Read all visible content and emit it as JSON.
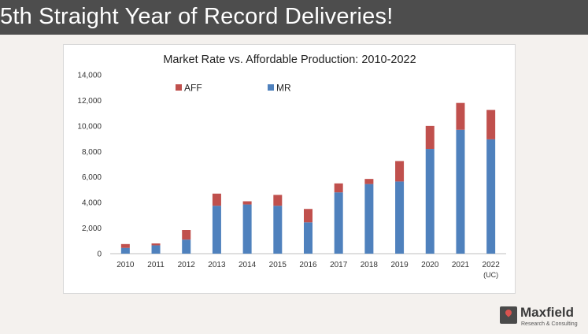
{
  "slide": {
    "heading": "5th Straight Year of Record Deliveries!"
  },
  "logo": {
    "name": "Maxfield",
    "tagline": "Research & Consulting",
    "icon": "map-pin-icon"
  },
  "colors": {
    "title_bar": "#4d4d4d",
    "mr": "#4f81bd",
    "aff": "#c0504d",
    "background": "#f4f1ee"
  },
  "chart_data": {
    "type": "bar",
    "stacked": true,
    "title": "Market Rate vs. Affordable Production: 2010-2022",
    "categories": [
      "2010",
      "2011",
      "2012",
      "2013",
      "2014",
      "2015",
      "2016",
      "2017",
      "2018",
      "2019",
      "2020",
      "2021",
      "2022"
    ],
    "category_sublabels": [
      "",
      "",
      "",
      "",
      "",
      "",
      "",
      "",
      "",
      "",
      "",
      "",
      "(UC)"
    ],
    "series": [
      {
        "name": "MR",
        "color": "#4f81bd",
        "values": [
          450,
          650,
          1100,
          3750,
          3850,
          3750,
          2450,
          4800,
          5450,
          5650,
          8200,
          9700,
          8950
        ]
      },
      {
        "name": "AFF",
        "color": "#c0504d",
        "values": [
          300,
          150,
          750,
          950,
          250,
          850,
          1050,
          700,
          400,
          1600,
          1800,
          2100,
          2300
        ]
      }
    ],
    "legend": {
      "position": "top-left",
      "order": [
        "AFF",
        "MR"
      ]
    },
    "ylim": [
      0,
      14000
    ],
    "yticks": [
      0,
      2000,
      4000,
      6000,
      8000,
      10000,
      12000,
      14000
    ],
    "ytick_labels": [
      "0",
      "2,000",
      "4,000",
      "6,000",
      "8,000",
      "10,000",
      "12,000",
      "14,000"
    ],
    "xlabel": "",
    "ylabel": "",
    "grid": false
  }
}
